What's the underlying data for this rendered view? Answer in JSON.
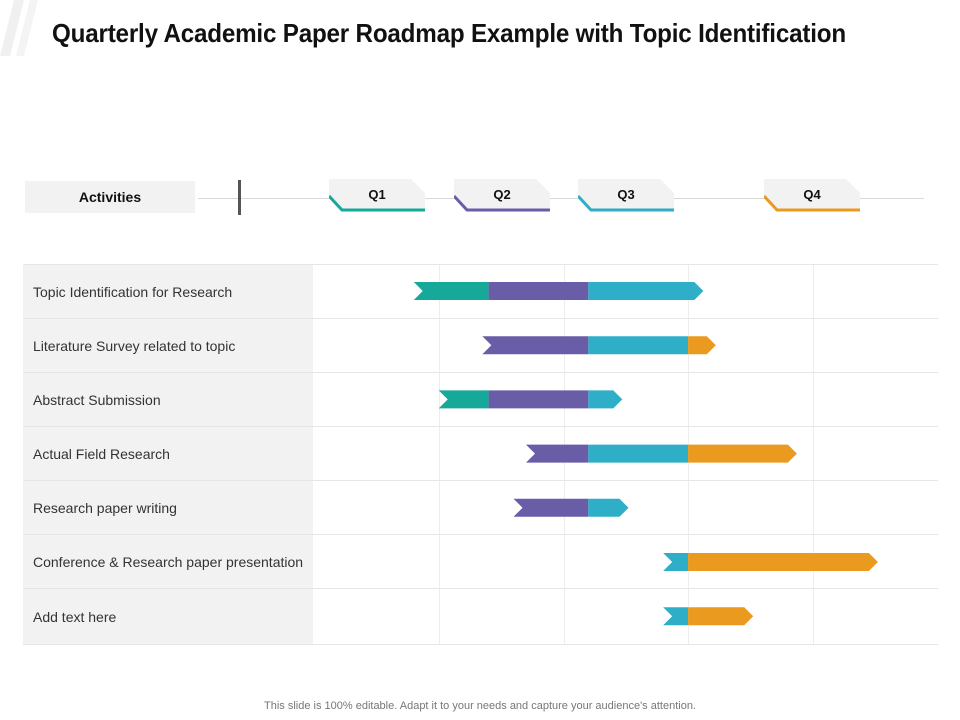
{
  "title": "Quarterly Academic Paper Roadmap Example with Topic Identification",
  "header": {
    "activities_label": "Activities",
    "quarters": [
      {
        "label": "Q1",
        "color": "#16a99a"
      },
      {
        "label": "Q2",
        "color": "#6a5da7"
      },
      {
        "label": "Q3",
        "color": "#2faec8"
      },
      {
        "label": "Q4",
        "color": "#e99a1f"
      }
    ]
  },
  "colors": {
    "teal": "#16a99a",
    "purple": "#6a5da7",
    "blue": "#2faec8",
    "orange": "#e99a1f"
  },
  "activities": [
    {
      "label": "Topic Identification for Research",
      "segments": [
        {
          "color": "teal",
          "start": 0.8,
          "end": 1.4
        },
        {
          "color": "purple",
          "start": 1.4,
          "end": 2.2
        },
        {
          "color": "blue",
          "start": 2.2,
          "end": 3.05
        }
      ]
    },
    {
      "label": "Literature Survey related to topic",
      "segments": [
        {
          "color": "purple",
          "start": 1.35,
          "end": 2.2
        },
        {
          "color": "blue",
          "start": 2.2,
          "end": 3.0
        },
        {
          "color": "orange",
          "start": 3.0,
          "end": 3.15
        }
      ]
    },
    {
      "label": "Abstract Submission",
      "segments": [
        {
          "color": "teal",
          "start": 1.0,
          "end": 1.4
        },
        {
          "color": "purple",
          "start": 1.4,
          "end": 2.2
        },
        {
          "color": "blue",
          "start": 2.2,
          "end": 2.4
        }
      ]
    },
    {
      "label": "Actual Field Research",
      "segments": [
        {
          "color": "purple",
          "start": 1.7,
          "end": 2.2
        },
        {
          "color": "blue",
          "start": 2.2,
          "end": 3.0
        },
        {
          "color": "orange",
          "start": 3.0,
          "end": 3.8
        }
      ]
    },
    {
      "label": "Research paper writing",
      "segments": [
        {
          "color": "purple",
          "start": 1.6,
          "end": 2.2
        },
        {
          "color": "blue",
          "start": 2.2,
          "end": 2.45
        }
      ]
    },
    {
      "label": "Conference & Research paper presentation",
      "segments": [
        {
          "color": "blue",
          "start": 2.8,
          "end": 3.0
        },
        {
          "color": "orange",
          "start": 3.0,
          "end": 4.45
        }
      ]
    },
    {
      "label": "Add text here",
      "segments": [
        {
          "color": "blue",
          "start": 2.8,
          "end": 3.0
        },
        {
          "color": "orange",
          "start": 3.0,
          "end": 3.45
        }
      ]
    }
  ],
  "footer": "This slide is 100% editable. Adapt it to your needs and capture your audience's attention."
}
